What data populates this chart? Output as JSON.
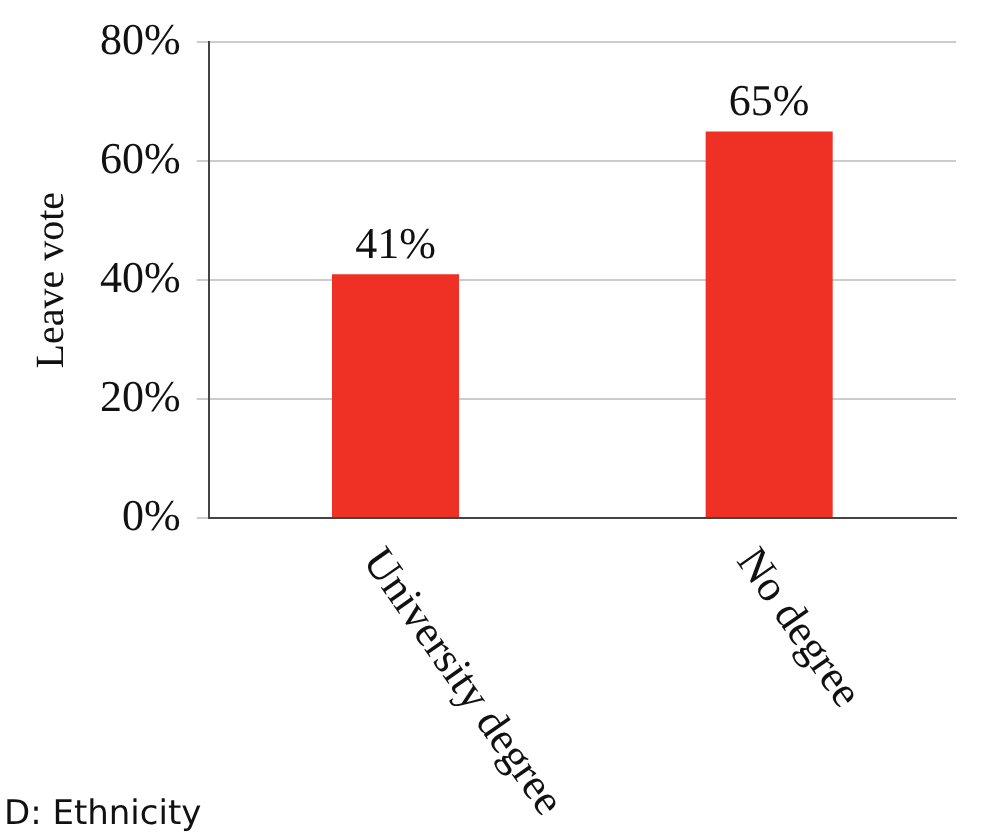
{
  "chart_data": {
    "type": "bar",
    "ylabel": "Leave vote",
    "categories": [
      "University degree",
      "No degree"
    ],
    "values": [
      41,
      65
    ],
    "color": "#ee3124",
    "value_labels": [
      "41%",
      "65%"
    ],
    "ylim": [
      0,
      80
    ],
    "yticks": [
      {
        "value": 0,
        "label": "0%"
      },
      {
        "value": 20,
        "label": "20%"
      },
      {
        "value": 40,
        "label": "40%"
      },
      {
        "value": 60,
        "label": "60%"
      },
      {
        "value": 80,
        "label": "80%"
      }
    ],
    "grid": "y",
    "legend": false,
    "annotations": [
      "D: Ethnicity"
    ]
  }
}
